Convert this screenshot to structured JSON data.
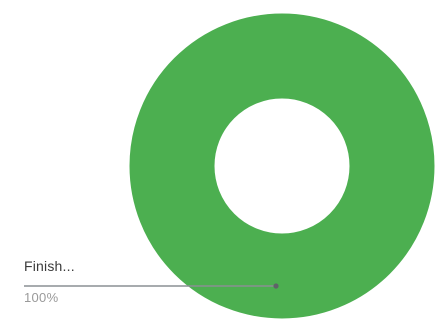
{
  "chart_data": {
    "type": "pie",
    "style": "donut",
    "slices": [
      {
        "label": "Finish...",
        "value": 100,
        "value_label": "100%"
      }
    ],
    "colors": {
      "slice": "#4caf50",
      "leader_line": "#8a8f93",
      "leader_dot": "#5f6368"
    }
  }
}
